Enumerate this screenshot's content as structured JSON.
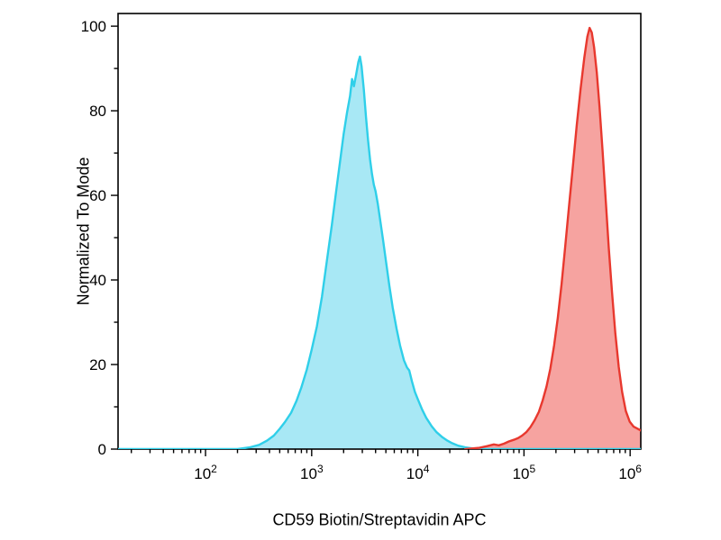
{
  "chart_data": {
    "type": "area",
    "title": "",
    "xlabel": "CD59 Biotin/Streptavidin APC",
    "ylabel": "Normalized To Mode",
    "x_scale": "log",
    "xlim": [
      15,
      1260000
    ],
    "ylim": [
      0,
      103
    ],
    "grid": false,
    "legend": "none",
    "background": "#ffffff",
    "axis_color": "#000000",
    "y_ticks": [
      0,
      20,
      40,
      60,
      80,
      100
    ],
    "y_minor_ticks": [
      10,
      30,
      50,
      70,
      90
    ],
    "x_ticks": [
      {
        "value": 100,
        "base": "10",
        "exp": "2"
      },
      {
        "value": 1000,
        "base": "10",
        "exp": "3"
      },
      {
        "value": 10000,
        "base": "10",
        "exp": "4"
      },
      {
        "value": 100000,
        "base": "10",
        "exp": "5"
      },
      {
        "value": 1000000,
        "base": "10",
        "exp": "6"
      }
    ],
    "series": [
      {
        "id": "cyan-population",
        "name": "cyan-left-peak",
        "color": "#2fcfe9",
        "fill": "#a8e8f5",
        "peak_x": 2850,
        "peak_y": 92.8,
        "points": [
          [
            15,
            0
          ],
          [
            200,
            0
          ],
          [
            260,
            0.4
          ],
          [
            320,
            1
          ],
          [
            380,
            2
          ],
          [
            440,
            3.2
          ],
          [
            500,
            4.8
          ],
          [
            560,
            6.4
          ],
          [
            640,
            8.6
          ],
          [
            720,
            11.4
          ],
          [
            800,
            14.6
          ],
          [
            900,
            18.8
          ],
          [
            1000,
            23.5
          ],
          [
            1120,
            29
          ],
          [
            1250,
            36
          ],
          [
            1400,
            45
          ],
          [
            1550,
            53
          ],
          [
            1700,
            61
          ],
          [
            1850,
            68
          ],
          [
            2000,
            74.5
          ],
          [
            2150,
            79.5
          ],
          [
            2300,
            83.5
          ],
          [
            2400,
            87.5
          ],
          [
            2500,
            85.8
          ],
          [
            2620,
            88.5
          ],
          [
            2750,
            91.5
          ],
          [
            2850,
            92.8
          ],
          [
            2950,
            90.5
          ],
          [
            3100,
            85
          ],
          [
            3250,
            78.5
          ],
          [
            3400,
            73
          ],
          [
            3550,
            68.5
          ],
          [
            3700,
            65
          ],
          [
            3850,
            62.5
          ],
          [
            4000,
            61
          ],
          [
            4200,
            58
          ],
          [
            4400,
            54.5
          ],
          [
            4700,
            49.5
          ],
          [
            5000,
            44.5
          ],
          [
            5400,
            38.5
          ],
          [
            5800,
            33.5
          ],
          [
            6300,
            28.5
          ],
          [
            6800,
            24.5
          ],
          [
            7400,
            21
          ],
          [
            7900,
            19.3
          ],
          [
            8300,
            18.6
          ],
          [
            8800,
            16
          ],
          [
            9400,
            13.5
          ],
          [
            10000,
            11.8
          ],
          [
            11000,
            9.3
          ],
          [
            12000,
            7.4
          ],
          [
            13500,
            5.4
          ],
          [
            15000,
            4
          ],
          [
            17000,
            2.8
          ],
          [
            19000,
            2
          ],
          [
            21000,
            1.4
          ],
          [
            24000,
            0.8
          ],
          [
            28000,
            0.4
          ],
          [
            33000,
            0.15
          ],
          [
            40000,
            0
          ],
          [
            1260000,
            0
          ]
        ]
      },
      {
        "id": "red-population",
        "name": "red-right-peak",
        "color": "#e8382e",
        "fill": "#f6a3a0",
        "peak_x": 415000,
        "peak_y": 99.6,
        "points": [
          [
            28000,
            0
          ],
          [
            38000,
            0.3
          ],
          [
            45000,
            0.7
          ],
          [
            52000,
            1.1
          ],
          [
            58000,
            0.9
          ],
          [
            65000,
            1.3
          ],
          [
            72000,
            1.8
          ],
          [
            80000,
            2.2
          ],
          [
            88000,
            2.6
          ],
          [
            96000,
            3.2
          ],
          [
            105000,
            4
          ],
          [
            115000,
            5.2
          ],
          [
            126000,
            6.8
          ],
          [
            138000,
            8.8
          ],
          [
            150000,
            11.5
          ],
          [
            163000,
            14.8
          ],
          [
            177000,
            19
          ],
          [
            192000,
            24.5
          ],
          [
            208000,
            31
          ],
          [
            226000,
            39
          ],
          [
            245000,
            48
          ],
          [
            266000,
            57.5
          ],
          [
            289000,
            67
          ],
          [
            314000,
            76.5
          ],
          [
            341000,
            85
          ],
          [
            370000,
            92.5
          ],
          [
            395000,
            97.5
          ],
          [
            415000,
            99.6
          ],
          [
            435000,
            98.5
          ],
          [
            458000,
            95
          ],
          [
            485000,
            89
          ],
          [
            515000,
            81
          ],
          [
            550000,
            70.5
          ],
          [
            590000,
            58.5
          ],
          [
            630000,
            47.5
          ],
          [
            675000,
            37
          ],
          [
            725000,
            27.5
          ],
          [
            780000,
            19.5
          ],
          [
            840000,
            13.5
          ],
          [
            910000,
            9
          ],
          [
            990000,
            6.5
          ],
          [
            1080000,
            5.3
          ],
          [
            1180000,
            4.8
          ],
          [
            1260000,
            4.4
          ]
        ]
      }
    ]
  }
}
